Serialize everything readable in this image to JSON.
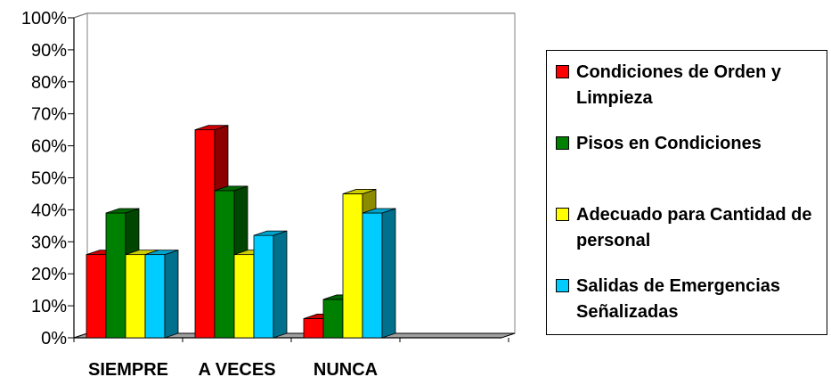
{
  "chart_data": {
    "type": "bar",
    "categories": [
      "SIEMPRE",
      "A VECES",
      "NUNCA"
    ],
    "yticks": [
      "0%",
      "10%",
      "20%",
      "30%",
      "40%",
      "50%",
      "60%",
      "70%",
      "80%",
      "90%",
      "100%"
    ],
    "ylim": [
      0,
      100
    ],
    "grid": true,
    "legend_position": "right",
    "series": [
      {
        "name": "Condiciones de Orden y Limpieza",
        "color": "#ff0000",
        "values": [
          26,
          65,
          6
        ]
      },
      {
        "name": "Pisos en Condiciones",
        "color": "#008000",
        "values": [
          39,
          46,
          12
        ]
      },
      {
        "name": "Adecuado para Cantidad de personal",
        "color": "#ffff00",
        "values": [
          26,
          26,
          45
        ]
      },
      {
        "name": "Salidas de Emergencias Señalizadas",
        "color": "#00ccff",
        "values": [
          26,
          32,
          39
        ]
      }
    ]
  }
}
